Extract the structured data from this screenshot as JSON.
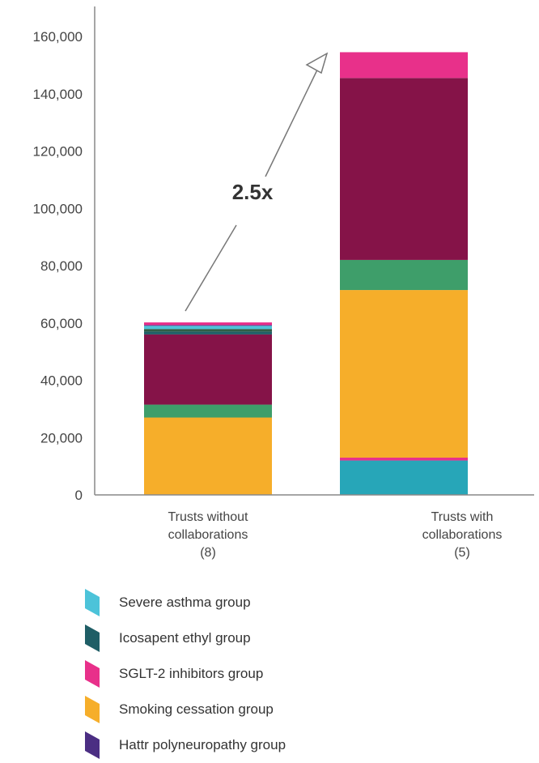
{
  "chart_data": {
    "type": "bar",
    "stacked": true,
    "categories": [
      "Trusts without collaborations (8)",
      "Trusts with collaborations (5)"
    ],
    "category_label_lines": [
      [
        "Trusts without",
        "collaborations",
        "(8)"
      ],
      [
        "Trusts with",
        "collaborations",
        "(5)"
      ]
    ],
    "series": [
      {
        "key": "severe_asthma_bottom",
        "color": "#27A6B8",
        "values": [
          0,
          12000
        ]
      },
      {
        "key": "sglt2_bottom",
        "color": "#E8308A",
        "values": [
          0,
          1000
        ]
      },
      {
        "key": "smoking",
        "color": "#F6AE2A",
        "values": [
          27000,
          58500
        ]
      },
      {
        "key": "green",
        "color": "#3E9E6A",
        "values": [
          4500,
          10500
        ]
      },
      {
        "key": "maroon",
        "color": "#851348",
        "values": [
          24500,
          63500
        ]
      },
      {
        "key": "icosapent",
        "color": "#1F5E66",
        "values": [
          1000,
          0
        ]
      },
      {
        "key": "dark_green",
        "color": "#2F5E45",
        "values": [
          900,
          0
        ]
      },
      {
        "key": "severe_asthma",
        "color": "#4CC3D9",
        "values": [
          1100,
          0
        ]
      },
      {
        "key": "hattr",
        "color": "#4B2E83",
        "values": [
          300,
          0
        ]
      },
      {
        "key": "sglt2_top",
        "color": "#E8308A",
        "values": [
          900,
          9000
        ]
      }
    ],
    "yticks": [
      "0",
      "20,000",
      "40,000",
      "60,000",
      "80,000",
      "100,000",
      "120,000",
      "140,000",
      "160,000"
    ],
    "ylim": [
      0,
      170000
    ],
    "annotation": "2.5x",
    "legend": [
      {
        "label": "Severe asthma group",
        "color": "#4CC3D9"
      },
      {
        "label": "Icosapent ethyl group",
        "color": "#1F5E66"
      },
      {
        "label": "SGLT-2 inhibitors group",
        "color": "#E8308A"
      },
      {
        "label": "Smoking cessation group",
        "color": "#F6AE2A"
      },
      {
        "label": "Hattr polyneuropathy group",
        "color": "#4B2E83"
      }
    ]
  }
}
